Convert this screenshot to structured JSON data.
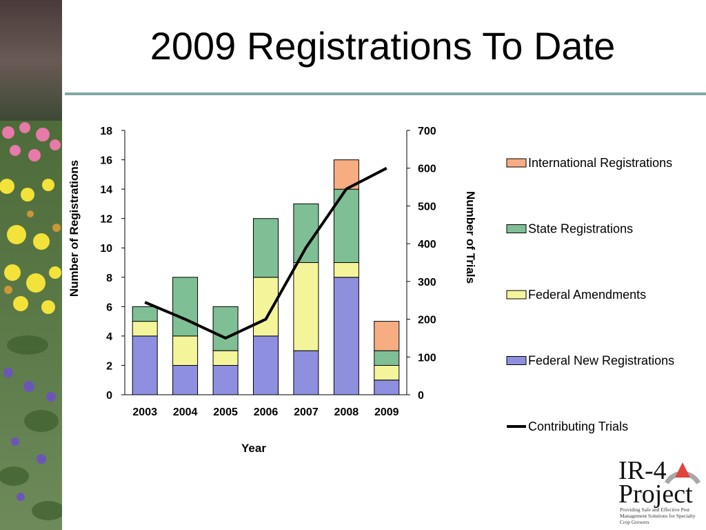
{
  "slide": {
    "title": "2009 Registrations To Date"
  },
  "logo": {
    "line1": "IR-4",
    "line2": "Project",
    "tagline": "Providing Safe and Effective Pest Management Solutions for Specialty Crop Growers"
  },
  "chart_data": {
    "type": "bar",
    "stacked": true,
    "categories": [
      "2003",
      "2004",
      "2005",
      "2006",
      "2007",
      "2008",
      "2009"
    ],
    "series": [
      {
        "name": "Federal New Registrations",
        "axis": "left",
        "color": "#8f8fe0",
        "values": [
          4,
          2,
          2,
          4,
          3,
          8,
          1
        ]
      },
      {
        "name": "Federal Amendments",
        "axis": "left",
        "color": "#f4f49a",
        "values": [
          1,
          2,
          1,
          4,
          6,
          1,
          1
        ]
      },
      {
        "name": "State Registrations",
        "axis": "left",
        "color": "#7fbf95",
        "values": [
          1,
          4,
          3,
          4,
          4,
          5,
          1
        ]
      },
      {
        "name": "International Registrations",
        "axis": "left",
        "color": "#f7ad82",
        "values": [
          0,
          0,
          0,
          0,
          0,
          2,
          2
        ]
      }
    ],
    "line_series": {
      "name": "Contributing Trials",
      "axis": "right",
      "type": "line",
      "color": "#000000",
      "values": [
        245,
        200,
        150,
        200,
        390,
        545,
        600
      ]
    },
    "xlabel": "Year",
    "ylabel": "Number of Registrations",
    "y2label": "Number of Trials",
    "ylim": [
      0,
      18
    ],
    "y_ticks": [
      0,
      2,
      4,
      6,
      8,
      10,
      12,
      14,
      16,
      18
    ],
    "y2lim": [
      0,
      700
    ],
    "y2_ticks": [
      0,
      100,
      200,
      300,
      400,
      500,
      600,
      700
    ],
    "legend_position": "right",
    "legend_order": [
      "International Registrations",
      "State Registrations",
      "Federal Amendments",
      "Federal New Registrations",
      "Contributing Trials"
    ],
    "grid": false
  }
}
